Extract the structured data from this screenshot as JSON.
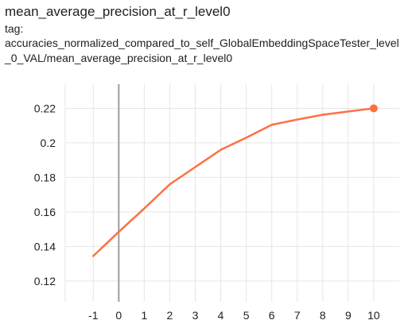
{
  "header": {
    "title": "mean_average_precision_at_r_level0",
    "tag_label": "tag:",
    "tag_value": "accuracies_normalized_compared_to_self_GlobalEmbeddingSpaceTester_level_0_VAL/mean_average_precision_at_r_level0"
  },
  "colors": {
    "series": "#ff7043",
    "grid": "#e6e6e6",
    "zero_line": "#9e9e9e",
    "axis_text": "#212121"
  },
  "chart_data": {
    "type": "line",
    "title": "mean_average_precision_at_r_level0",
    "xlabel": "",
    "ylabel": "",
    "xlim": [
      -2.1,
      11
    ],
    "ylim": [
      0.108,
      0.234
    ],
    "xticks": [
      "-1",
      "0",
      "1",
      "2",
      "3",
      "4",
      "5",
      "6",
      "7",
      "8",
      "9",
      "10"
    ],
    "yticks": [
      "0.12",
      "0.14",
      "0.16",
      "0.18",
      "0.2",
      "0.22"
    ],
    "grid": true,
    "legend": "none",
    "series": [
      {
        "x": [
          -1,
          0,
          1,
          2,
          3,
          4,
          5,
          6,
          7,
          8,
          9,
          10
        ],
        "y": [
          0.1345,
          0.1485,
          0.162,
          0.176,
          0.186,
          0.196,
          0.203,
          0.2105,
          0.2135,
          0.2163,
          0.2182,
          0.22
        ],
        "marker_last": true
      }
    ]
  }
}
